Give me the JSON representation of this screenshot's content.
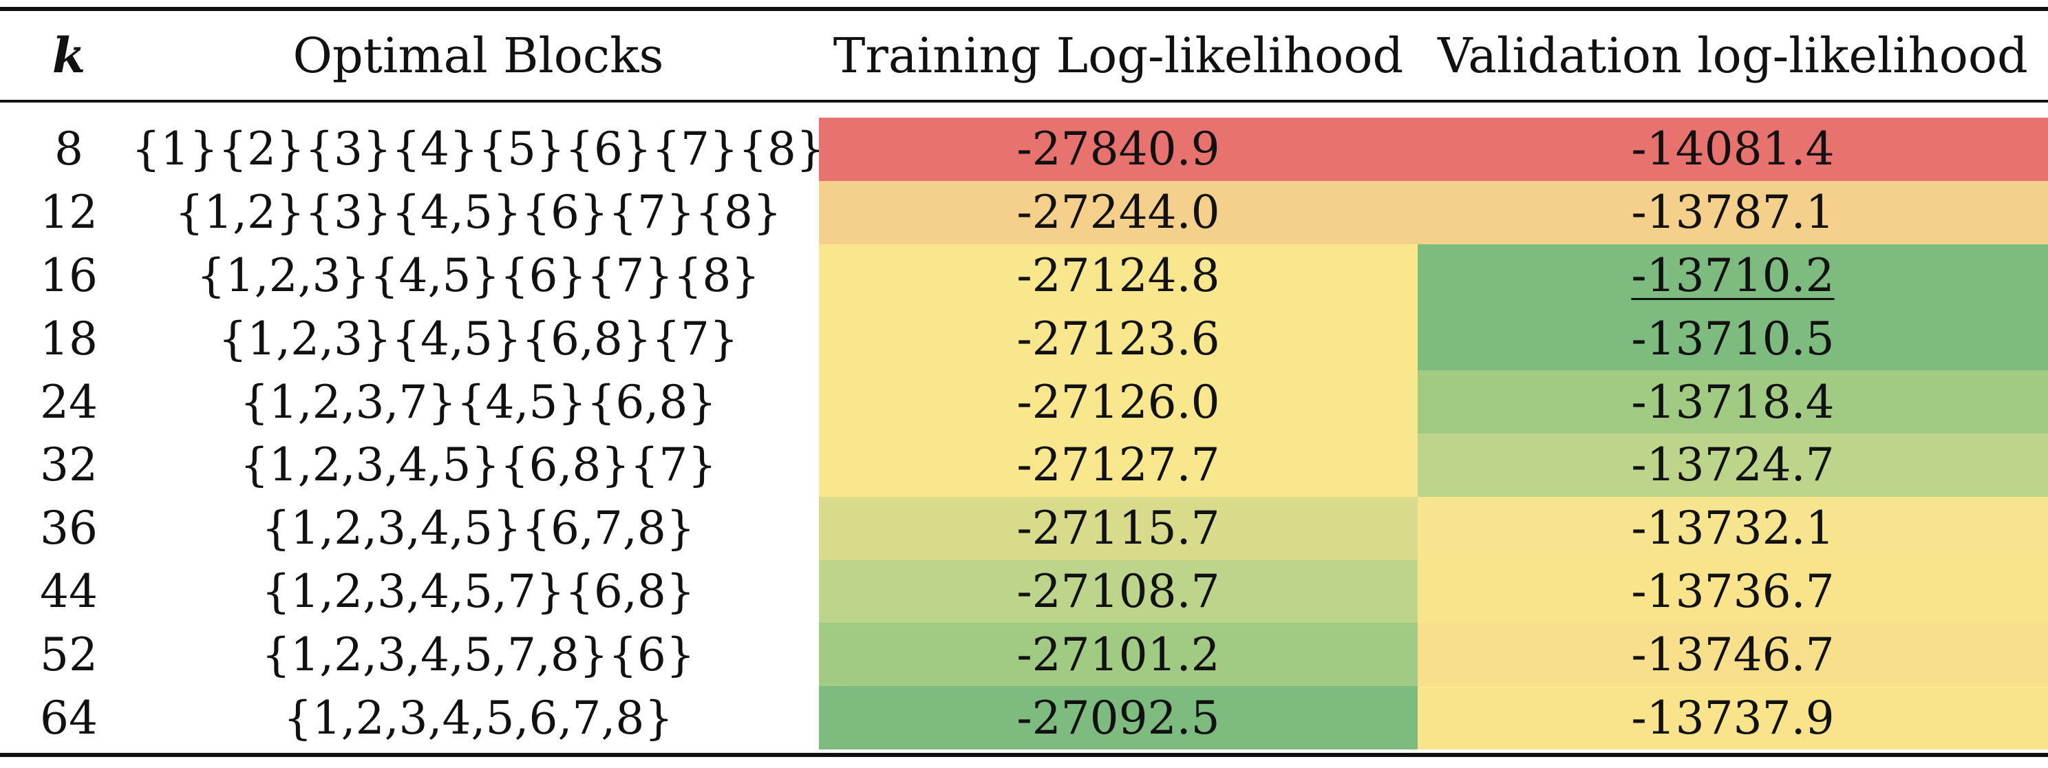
{
  "headers": {
    "k": "k",
    "blocks": "Optimal Blocks",
    "train": "Training Log-likelihood",
    "val": "Validation log-likelihood"
  },
  "colors": {
    "red": "#e8726e",
    "orange": "#f5d08b",
    "yellow": "#f9e78d",
    "yellow_green": "#d8dc8a",
    "light_green": "#bcd58a",
    "mid_green": "#a1ca82",
    "green": "#7dbb7f"
  },
  "rows": [
    {
      "k": "8",
      "blocks": "{1}{2}{3}{4}{5}{6}{7}{8}",
      "train": "-27840.9",
      "val": "-14081.4",
      "train_color": "#e8726e",
      "val_color": "#e8726e",
      "val_underline": false
    },
    {
      "k": "12",
      "blocks": "{1,2}{3}{4,5}{6}{7}{8}",
      "train": "-27244.0",
      "val": "-13787.1",
      "train_color": "#f5d08b",
      "val_color": "#f5d08b",
      "val_underline": false
    },
    {
      "k": "16",
      "blocks": "{1,2,3}{4,5}{6}{7}{8}",
      "train": "-27124.8",
      "val": "-13710.2",
      "train_color": "#f9e78d",
      "val_color": "#7dbb7f",
      "val_underline": true
    },
    {
      "k": "18",
      "blocks": "{1,2,3}{4,5}{6,8}{7}",
      "train": "-27123.6",
      "val": "-13710.5",
      "train_color": "#f9e78d",
      "val_color": "#7dbb7f",
      "val_underline": false
    },
    {
      "k": "24",
      "blocks": "{1,2,3,7}{4,5}{6,8}",
      "train": "-27126.0",
      "val": "-13718.4",
      "train_color": "#f9e78d",
      "val_color": "#a1ca82",
      "val_underline": false
    },
    {
      "k": "32",
      "blocks": "{1,2,3,4,5}{6,8}{7}",
      "train": "-27127.7",
      "val": "-13724.7",
      "train_color": "#f9e78d",
      "val_color": "#bcd58a",
      "val_underline": false
    },
    {
      "k": "36",
      "blocks": "{1,2,3,4,5}{6,7,8}",
      "train": "-27115.7",
      "val": "-13732.1",
      "train_color": "#d8dc8a",
      "val_color": "#f6e58e",
      "val_underline": false
    },
    {
      "k": "44",
      "blocks": "{1,2,3,4,5,7}{6,8}",
      "train": "-27108.7",
      "val": "-13736.7",
      "train_color": "#bcd58a",
      "val_color": "#f9e48c",
      "val_underline": false
    },
    {
      "k": "52",
      "blocks": "{1,2,3,4,5,7,8}{6}",
      "train": "-27101.2",
      "val": "-13746.7",
      "train_color": "#a1ca82",
      "val_color": "#f8df8c",
      "val_underline": false
    },
    {
      "k": "64",
      "blocks": "{1,2,3,4,5,6,7,8}",
      "train": "-27092.5",
      "val": "-13737.9",
      "train_color": "#7dbb7f",
      "val_color": "#f9e48c",
      "val_underline": false
    }
  ]
}
